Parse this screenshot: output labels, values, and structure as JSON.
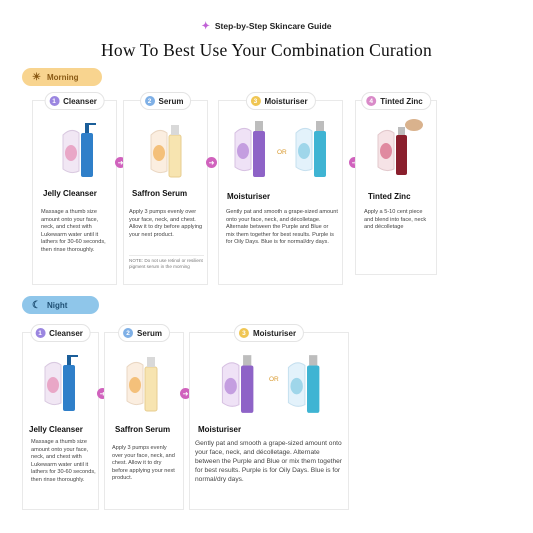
{
  "header": {
    "kicker": "Step-by-Step Skincare Guide",
    "title": "How To Best Use Your  Combination Curation"
  },
  "colors": {
    "accent_pink": "#d062bd",
    "morning_pill": "#f8d48f",
    "night_pill": "#8fc6ea"
  },
  "morning": {
    "label": "Morning",
    "icon": "sunrise-icon",
    "steps": [
      {
        "num": "1",
        "step_label": "Cleanser",
        "product": "Jelly Cleanser",
        "desc": "Massage a thumb size amount onto your face, neck, and chest with Lukewarm water until it lathers for 30-60 seconds, then rinse thoroughly."
      },
      {
        "num": "2",
        "step_label": "Serum",
        "product": "Saffron Serum",
        "desc": "Apply 3 pumps evenly over your face, neck, and chest. Allow it to dry before applying your next product.",
        "note": "NOTE: Do not use retinol or resilient pigment serum in the morning"
      },
      {
        "num": "3",
        "step_label": "Moisturiser",
        "product": "Moisturiser",
        "or": "OR",
        "desc": "Gently pat and smooth a grape-sized amount onto your face, neck, and décolletage. Alternate between the Purple and Blue or mix them together for best results. Purple is for Oily Days. Blue is for normal/dry days."
      },
      {
        "num": "4",
        "step_label": "Tinted Zinc",
        "product": "Tinted Zinc",
        "desc": "Apply a 5-10 cent piece and blend into face, neck and décolletage"
      }
    ]
  },
  "night": {
    "label": "Night",
    "icon": "moon-icon",
    "steps": [
      {
        "num": "1",
        "step_label": "Cleanser",
        "product": "Jelly  Cleanser",
        "desc": "Massage a thumb size amount onto your face, neck, and chest with Lukewarm water until it lathers for 30-60 seconds, then rinse thoroughly."
      },
      {
        "num": "2",
        "step_label": "Serum",
        "product": "Saffron Serum",
        "desc": "Apply 3 pumps evenly over your face, neck, and chest. Allow it to dry before applying your next product."
      },
      {
        "num": "3",
        "step_label": "Moisturiser",
        "product": "Moisturiser",
        "or": "OR",
        "desc": "Gently pat and smooth a grape-sized amount onto your face, neck, and décolletage. Alternate between the Purple and Blue or mix them together for best results. Purple is for Oily Days. Blue is for normal/dry days."
      }
    ]
  }
}
